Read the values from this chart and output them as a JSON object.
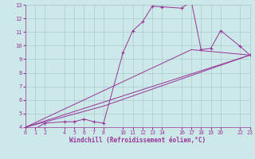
{
  "bg_color": "#cce8e8",
  "grid_color": "#aacccc",
  "line_color": "#993399",
  "marker_color": "#993399",
  "xlabel": "Windchill (Refroidissement éolien,°C)",
  "xlim": [
    0,
    23
  ],
  "ylim": [
    4,
    13
  ],
  "xticks": [
    0,
    1,
    2,
    4,
    5,
    6,
    7,
    8,
    10,
    11,
    12,
    13,
    14,
    16,
    17,
    18,
    19,
    20,
    22,
    23
  ],
  "yticks": [
    4,
    5,
    6,
    7,
    8,
    9,
    10,
    11,
    12,
    13
  ],
  "line1_x": [
    0,
    1,
    2,
    4,
    5,
    6,
    7,
    8,
    10,
    11,
    12,
    13,
    14,
    16,
    17,
    18,
    19,
    20,
    22,
    23
  ],
  "line1_y": [
    4.0,
    3.9,
    4.3,
    4.4,
    4.4,
    4.6,
    4.4,
    4.3,
    9.5,
    11.1,
    11.75,
    12.9,
    12.85,
    12.75,
    13.25,
    9.7,
    9.8,
    11.1,
    9.95,
    9.3
  ],
  "line2_x": [
    0,
    23
  ],
  "line2_y": [
    4.0,
    9.3
  ],
  "line3_x": [
    0,
    17,
    23
  ],
  "line3_y": [
    4.0,
    9.7,
    9.3
  ],
  "line4_x": [
    0,
    8,
    23
  ],
  "line4_y": [
    4.0,
    5.55,
    9.3
  ]
}
